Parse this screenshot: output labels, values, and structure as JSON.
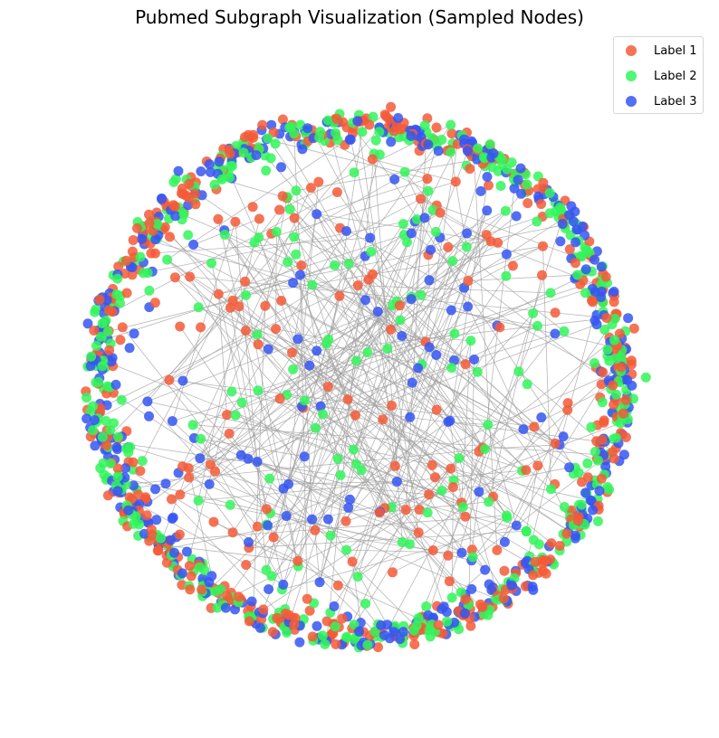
{
  "chart_data": {
    "type": "scatter",
    "title": "Pubmed Subgraph Visualization (Sampled Nodes)",
    "xlabel": "",
    "ylabel": "",
    "axes_visible": false,
    "grid": false,
    "legend_placement": "top-right",
    "edge_color": "#a0a0a0",
    "series": [
      {
        "name": "Label 1",
        "color": "#f45a37"
      },
      {
        "name": "Label 2",
        "color": "#33f55a"
      },
      {
        "name": "Label 3",
        "color": "#3556f2"
      }
    ]
  }
}
